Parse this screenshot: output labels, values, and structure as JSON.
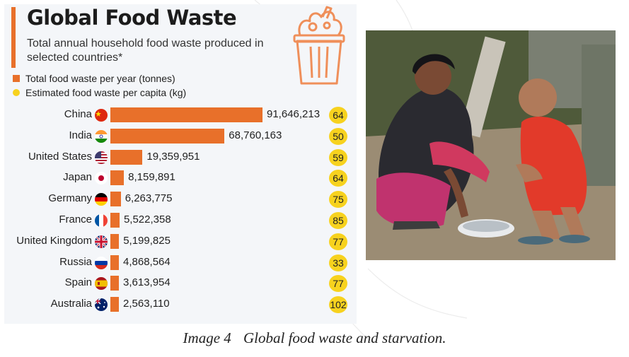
{
  "chart_data": {
    "type": "bar",
    "title": "Global Food Waste",
    "subtitle": "Total annual household food waste produced in selected countries*",
    "legend": [
      {
        "label": "Total food waste per year (tonnes)",
        "color": "#e8702a",
        "marker": "square"
      },
      {
        "label": "Estimated food waste per capita (kg)",
        "color": "#f7d21e",
        "marker": "circle"
      }
    ],
    "legend_placement": "top-left",
    "categories": [
      "China",
      "India",
      "United States",
      "Japan",
      "Germany",
      "France",
      "United Kingdom",
      "Russia",
      "Spain",
      "Australia"
    ],
    "series": [
      {
        "name": "Total food waste per year (tonnes)",
        "values": [
          91646213,
          68760163,
          19359951,
          8159891,
          6263775,
          5522358,
          5199825,
          4868564,
          3613954,
          2563110
        ],
        "labels": [
          "91,646,213",
          "68,760,163",
          "19,359,951",
          "8,159,891",
          "6,263,775",
          "5,522,358",
          "5,199,825",
          "4,868,564",
          "3,613,954",
          "2,563,110"
        ]
      },
      {
        "name": "Estimated food waste per capita (kg)",
        "values": [
          64,
          50,
          59,
          64,
          75,
          85,
          77,
          33,
          77,
          102
        ]
      }
    ],
    "flags": [
      "china-flag-icon",
      "india-flag-icon",
      "usa-flag-icon",
      "japan-flag-icon",
      "germany-flag-icon",
      "france-flag-icon",
      "uk-flag-icon",
      "russia-flag-icon",
      "spain-flag-icon",
      "australia-flag-icon"
    ],
    "grid": false,
    "bar_color": "#e8702a",
    "badge_color": "#f7d21e"
  },
  "caption": {
    "label": "Image 4",
    "text": "Global food waste and starvation."
  },
  "photo": {
    "icon": "photo-woman-child-bowl-icon"
  }
}
